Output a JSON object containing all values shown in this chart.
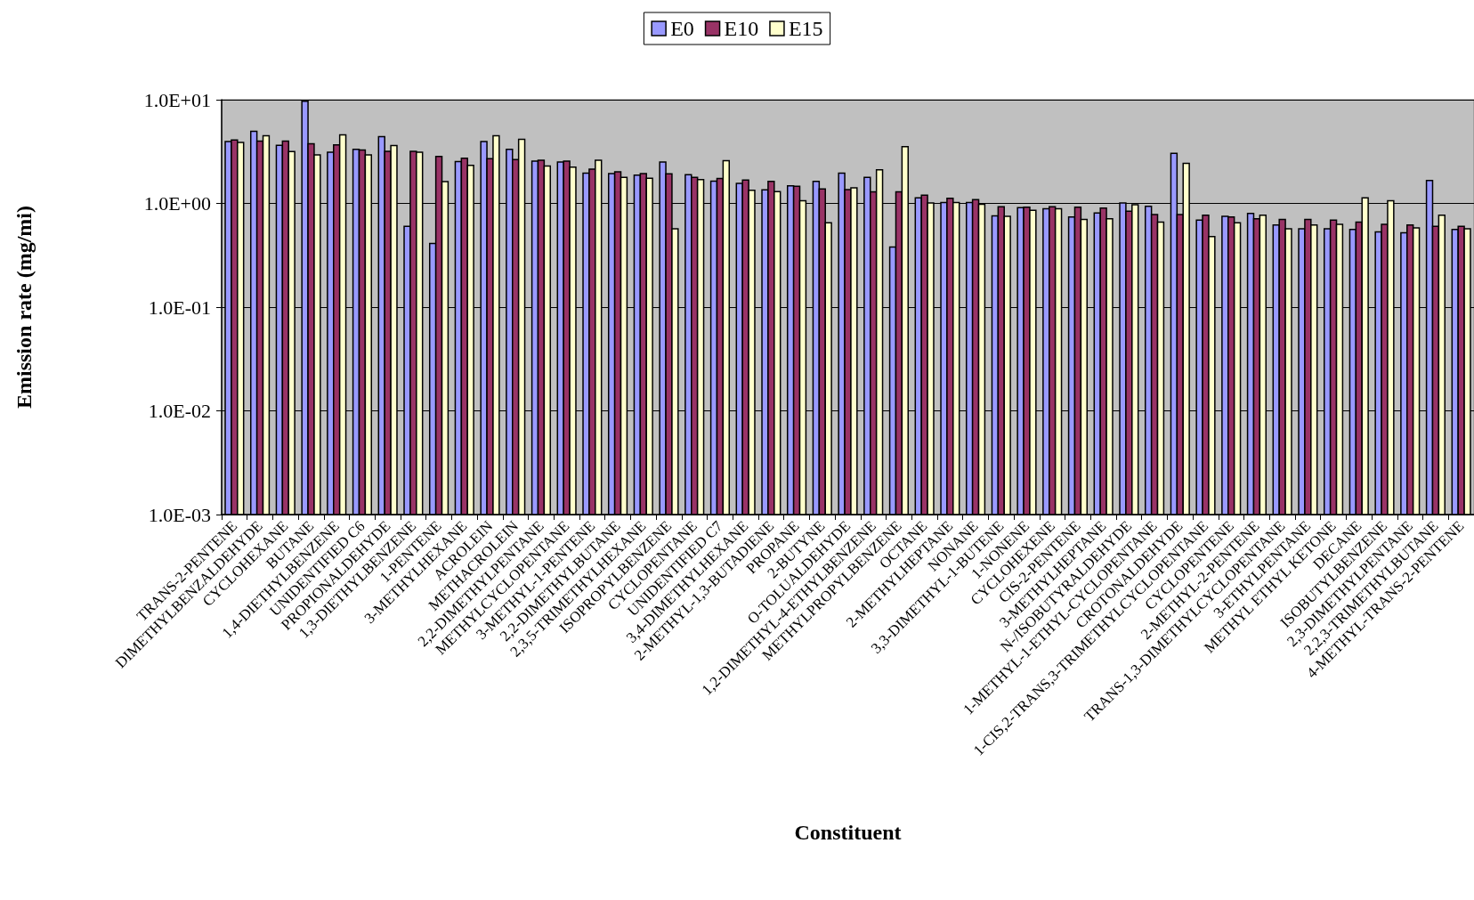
{
  "chart_data": {
    "type": "bar",
    "xlabel": "Constituent",
    "ylabel": "Emission rate (mg/mi)",
    "categories": [
      "TRANS-2-PENTENE",
      "DIMETHYLBENZALDEHYDE",
      "CYCLOHEXANE",
      "BUTANE",
      "1,4-DIETHYLBENZENE",
      "UNIDENTIFIED C6",
      "PROPIONALDEHYDE",
      "1,3-DIETHYLBENZENE",
      "1-PENTENE",
      "3-METHYLHEXANE",
      "ACROLEIN",
      "METHACROLEIN",
      "2,2-DIMETHYLPENTANE",
      "METHYLCYCLOPENTANE",
      "3-METHYL-1-PENTENE",
      "2,2-DIMETHYLBUTANE",
      "2,3,5-TRIMETHYLHEXANE",
      "ISOPROPYLBENZENE",
      "CYCLOPENTANE",
      "UNIDENTIFIED C7",
      "3,4-DIMETHYLHEXANE",
      "2-METHYL-1,3-BUTADIENE",
      "PROPANE",
      "2-BUTYNE",
      "O-TOLUALDEHYDE",
      "1,2-DIMETHYL-4-ETHYLBENZENE",
      "METHYLPROPYLBENZENE",
      "OCTANE",
      "2-METHYLHEPTANE",
      "NONANE",
      "3,3-DIMETHYL-1-BUTENE",
      "1-NONENE",
      "CYCLOHEXENE",
      "CIS-2-PENTENE",
      "3-METHYLHEPTANE",
      "N-/ISOBUTYRALDEHYDE",
      "1-METHYL-1-ETHYL-CYCLOPENTANE",
      "CROTONALDEHYDE",
      "1-CIS,2-TRANS,3-TRIMETHYLCYCLOPENTANE",
      "CYCLOPENTENE",
      "2-METHYL-2-PENTENE",
      "TRANS-1,3-DIMETHYLCYCLOPENTANE",
      "3-ETHYLPENTANE",
      "METHYL ETHYL KETONE",
      "DECANE",
      "ISOBUTYLBENZENE",
      "2,3-DIMETHYLPENTANE",
      "2,2,3-TRIMETHYLBUTANE",
      "4-METHYL-TRANS-2-PENTENE"
    ],
    "series": [
      {
        "name": "E0",
        "color": "#9999ff",
        "values": [
          3.94,
          4.96,
          3.63,
          9.67,
          3.12,
          3.33,
          4.4,
          0.6,
          0.41,
          2.53,
          3.94,
          3.33,
          2.56,
          2.51,
          1.96,
          1.94,
          1.87,
          2.51,
          1.89,
          1.64,
          1.56,
          1.35,
          1.48,
          1.63,
          1.96,
          1.78,
          0.38,
          1.13,
          1.02,
          1.02,
          0.76,
          0.91,
          0.89,
          0.74,
          0.81,
          1.01,
          0.94,
          3.04,
          0.69,
          0.75,
          0.8,
          0.62,
          0.57,
          0.57,
          0.56,
          0.53,
          0.52,
          1.66,
          0.56
        ]
      },
      {
        "name": "E10",
        "color": "#993366",
        "values": [
          4.09,
          3.99,
          3.99,
          3.76,
          3.66,
          3.27,
          3.18,
          3.18,
          2.83,
          2.73,
          2.7,
          2.65,
          2.61,
          2.56,
          2.14,
          2.02,
          1.94,
          1.93,
          1.78,
          1.74,
          1.68,
          1.63,
          1.46,
          1.38,
          1.36,
          1.29,
          1.29,
          1.2,
          1.12,
          1.09,
          0.93,
          0.92,
          0.93,
          0.92,
          0.9,
          0.84,
          0.78,
          0.78,
          0.77,
          0.74,
          0.71,
          0.7,
          0.7,
          0.69,
          0.66,
          0.63,
          0.62,
          0.6,
          0.6
        ]
      },
      {
        "name": "E15",
        "color": "#ffffcc",
        "values": [
          3.88,
          4.49,
          3.16,
          2.94,
          4.58,
          2.94,
          3.61,
          3.12,
          1.62,
          2.33,
          4.49,
          4.15,
          2.29,
          2.24,
          2.61,
          1.78,
          1.75,
          0.57,
          1.7,
          2.58,
          1.34,
          1.3,
          1.06,
          0.65,
          1.41,
          2.11,
          3.52,
          1.01,
          1.02,
          0.98,
          0.75,
          0.86,
          0.89,
          0.7,
          0.71,
          0.97,
          0.66,
          2.43,
          0.48,
          0.65,
          0.77,
          0.57,
          0.62,
          0.63,
          1.13,
          1.06,
          0.58,
          0.77,
          0.57
        ]
      }
    ],
    "ylim": [
      0.001,
      10
    ],
    "yticks": [
      {
        "value": 0.001,
        "label": "1.0E-03"
      },
      {
        "value": 0.01,
        "label": "1.0E-02"
      },
      {
        "value": 0.1,
        "label": "1.0E-01"
      },
      {
        "value": 1,
        "label": "1.0E+00"
      },
      {
        "value": 10,
        "label": "1.0E+01"
      }
    ],
    "log": "y",
    "grid": "y",
    "legend": "top"
  }
}
